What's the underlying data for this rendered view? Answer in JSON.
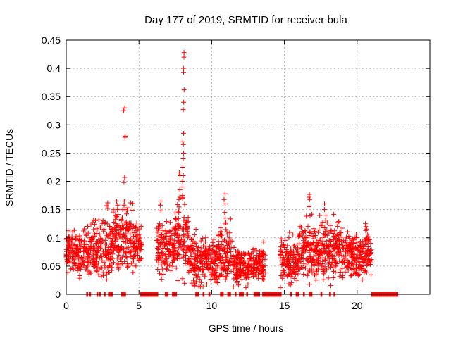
{
  "chart_data": {
    "type": "scatter",
    "title": "Day 177 of 2019, SRMTID for receiver bula",
    "xlabel": "GPS time / hours",
    "ylabel": "SRMTID / TECUs",
    "xlim": [
      0,
      25
    ],
    "ylim": [
      0,
      0.45
    ],
    "xticks": [
      0,
      5,
      10,
      15,
      20
    ],
    "yticks": [
      0,
      0.05,
      0.1,
      0.15,
      0.2,
      0.25,
      0.3,
      0.35,
      0.4,
      0.45
    ],
    "xtick_labels": [
      "0",
      "5",
      "10",
      "15",
      "20"
    ],
    "ytick_labels": [
      "0",
      "0.05",
      "0.1",
      "0.15",
      "0.2",
      "0.25",
      "0.3",
      "0.35",
      "0.4",
      "0.45"
    ],
    "grid": true,
    "marker": "+",
    "color": "#ff0000",
    "series": [
      {
        "name": "SRMTID",
        "segments": [
          {
            "start": 0.0,
            "end": 1.6,
            "base": 0.07,
            "spread": 0.04
          },
          {
            "start": 1.6,
            "end": 3.2,
            "base": 0.08,
            "spread": 0.05
          },
          {
            "start": 3.2,
            "end": 4.6,
            "base": 0.1,
            "spread": 0.05
          },
          {
            "start": 4.6,
            "end": 5.2,
            "base": 0.09,
            "spread": 0.04
          },
          {
            "start": 6.2,
            "end": 7.4,
            "base": 0.08,
            "spread": 0.05
          },
          {
            "start": 7.4,
            "end": 8.4,
            "base": 0.1,
            "spread": 0.06
          },
          {
            "start": 8.4,
            "end": 10.2,
            "base": 0.06,
            "spread": 0.04
          },
          {
            "start": 10.2,
            "end": 11.4,
            "base": 0.07,
            "spread": 0.05
          },
          {
            "start": 11.4,
            "end": 12.8,
            "base": 0.05,
            "spread": 0.03
          },
          {
            "start": 12.8,
            "end": 13.7,
            "base": 0.05,
            "spread": 0.03
          },
          {
            "start": 14.7,
            "end": 16.0,
            "base": 0.06,
            "spread": 0.04
          },
          {
            "start": 16.0,
            "end": 17.5,
            "base": 0.08,
            "spread": 0.05
          },
          {
            "start": 17.5,
            "end": 19.0,
            "base": 0.08,
            "spread": 0.05
          },
          {
            "start": 19.0,
            "end": 21.0,
            "base": 0.07,
            "spread": 0.04
          }
        ],
        "spikes": [
          {
            "x": 4.0,
            "y": [
              0.33,
              0.325,
              0.28,
              0.278,
              0.207,
              0.198,
              0.165,
              0.158,
              0.15
            ]
          },
          {
            "x": 8.05,
            "y": [
              0.428,
              0.42,
              0.4,
              0.393,
              0.362,
              0.34,
              0.327,
              0.285,
              0.27,
              0.265,
              0.25,
              0.24,
              0.225,
              0.21,
              0.2,
              0.19,
              0.175,
              0.17
            ]
          },
          {
            "x": 7.8,
            "y": [
              0.215,
              0.21,
              0.185,
              0.172,
              0.168
            ]
          },
          {
            "x": 10.9,
            "y": [
              0.178,
              0.168,
              0.16,
              0.145,
              0.135
            ]
          },
          {
            "x": 16.7,
            "y": [
              0.177,
              0.172,
              0.168,
              0.155
            ]
          },
          {
            "x": 17.8,
            "y": [
              0.16,
              0.15,
              0.14
            ]
          },
          {
            "x": 6.5,
            "y": [
              0.165,
              0.158,
              0.148
            ]
          },
          {
            "x": 3.5,
            "y": [
              0.165,
              0.158,
              0.15
            ]
          },
          {
            "x": 2.8,
            "y": [
              0.162,
              0.157,
              0.152
            ]
          },
          {
            "x": 20.6,
            "y": [
              0.125,
              0.12,
              0.113
            ]
          }
        ],
        "zero_ranges": [
          [
            1.4,
            1.5
          ],
          [
            1.6,
            1.7
          ],
          [
            2.1,
            2.2
          ],
          [
            2.3,
            2.4
          ],
          [
            2.6,
            2.7
          ],
          [
            2.9,
            3.2
          ],
          [
            3.8,
            4.1
          ],
          [
            5.1,
            6.3
          ],
          [
            6.8,
            7.0
          ],
          [
            7.3,
            7.6
          ],
          [
            8.9,
            9.1
          ],
          [
            9.4,
            9.5
          ],
          [
            9.8,
            9.9
          ],
          [
            10.6,
            10.8
          ],
          [
            11.1,
            11.3
          ],
          [
            11.6,
            11.7
          ],
          [
            11.9,
            12.2
          ],
          [
            12.4,
            12.5
          ],
          [
            12.9,
            13.3
          ],
          [
            13.5,
            14.8
          ],
          [
            15.4,
            15.5
          ],
          [
            15.8,
            16.0
          ],
          [
            16.3,
            16.4
          ],
          [
            16.7,
            16.9
          ],
          [
            17.5,
            17.6
          ],
          [
            18.1,
            18.2
          ],
          [
            18.4,
            18.5
          ],
          [
            21.0,
            22.8
          ]
        ]
      }
    ]
  }
}
